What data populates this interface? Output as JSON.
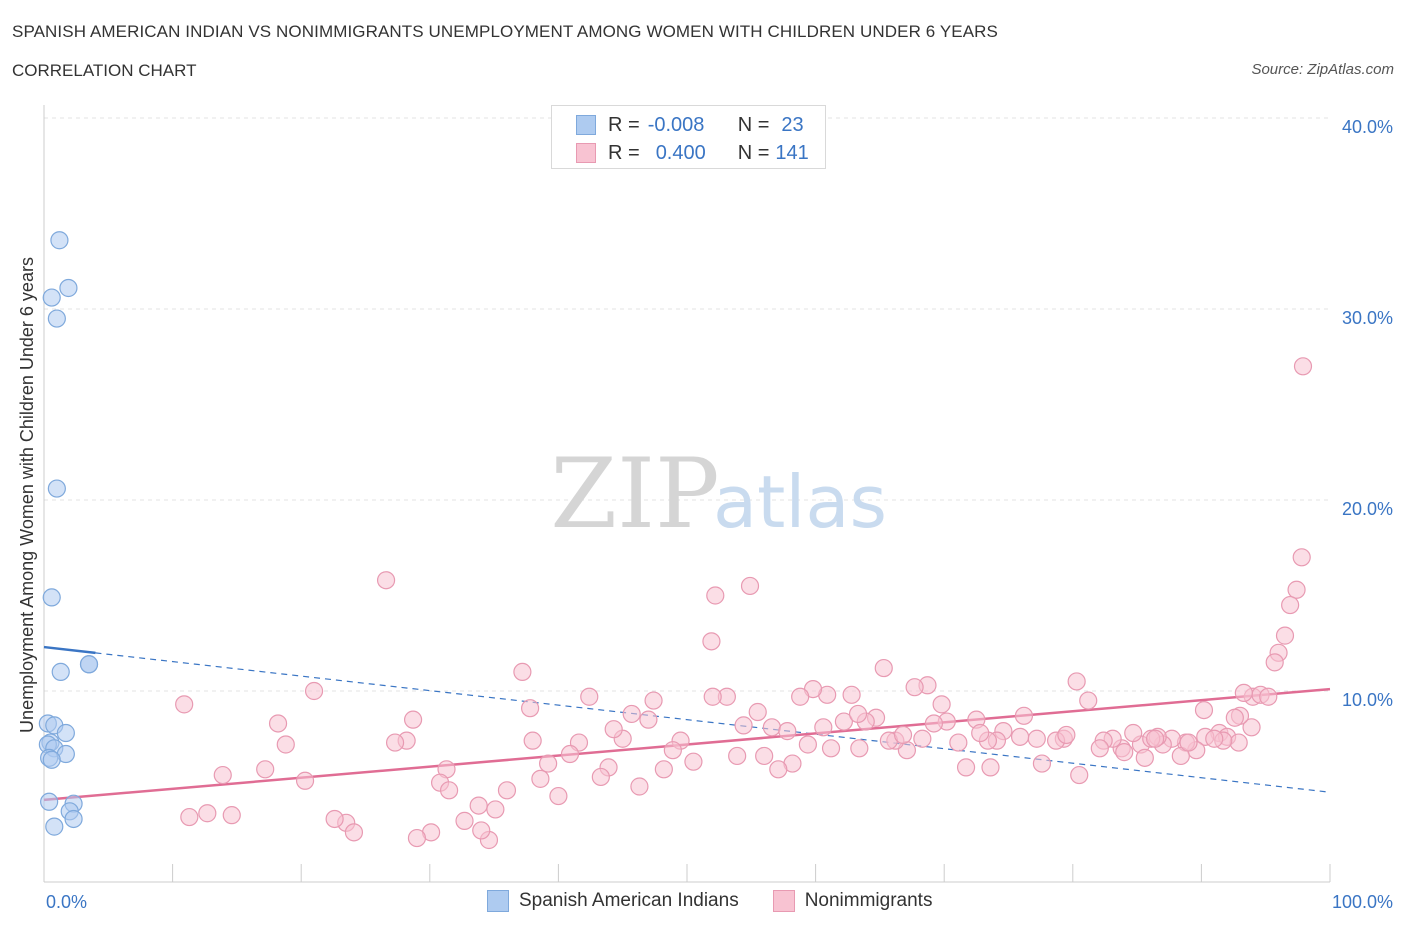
{
  "header": {
    "title": "SPANISH AMERICAN INDIAN VS NONIMMIGRANTS UNEMPLOYMENT AMONG WOMEN WITH CHILDREN UNDER 6 YEARS",
    "subtitle": "CORRELATION CHART",
    "source": "Source: ZipAtlas.com"
  },
  "legend": {
    "rows": [
      {
        "r_label": "R =",
        "r_value": "-0.008",
        "n_label": "N =",
        "n_value": "23",
        "color": "#aecbf0",
        "border": "#7fa9dc"
      },
      {
        "r_label": "R =",
        "r_value": "0.400",
        "n_label": "N =",
        "n_value": "141",
        "color": "#f8c3d2",
        "border": "#e89ab2"
      }
    ]
  },
  "bottom_legend": {
    "items": [
      {
        "label": "Spanish American Indians",
        "color": "#aecbf0",
        "border": "#7fa9dc"
      },
      {
        "label": "Nonimmigrants",
        "color": "#f8c3d2",
        "border": "#e89ab2"
      }
    ]
  },
  "watermark": {
    "zip": "ZIP",
    "atlas": "atlas"
  },
  "chart_data": {
    "type": "scatter",
    "title": "SPANISH AMERICAN INDIAN VS NONIMMIGRANTS UNEMPLOYMENT AMONG WOMEN WITH CHILDREN UNDER 6 YEARS",
    "ylabel": "Unemployment Among Women with Children Under 6 years",
    "xlabel": "",
    "xlim": [
      0,
      100
    ],
    "ylim": [
      0,
      40
    ],
    "x_tick_labels": [
      "0.0%",
      "100.0%"
    ],
    "y_ticks": [
      10,
      20,
      30,
      40
    ],
    "y_tick_labels": [
      "10.0%",
      "20.0%",
      "30.0%",
      "40.0%"
    ],
    "grid": true,
    "colors": {
      "blue": "#7fa9dc",
      "blue_fill": "#aecbf0",
      "pink": "#e89ab2",
      "pink_fill": "#f8c3d2",
      "blue_line": "#3a75c4",
      "pink_line": "#e06d94",
      "tick_text": "#3a75c4"
    },
    "series": [
      {
        "name": "Spanish American Indians",
        "trend": {
          "x0": 0,
          "y0": 12.3,
          "x1": 100,
          "y1": 4.7,
          "solid_until_x": 4
        },
        "points": [
          [
            1.2,
            33.6
          ],
          [
            1.9,
            31.1
          ],
          [
            0.6,
            30.6
          ],
          [
            1.0,
            29.5
          ],
          [
            1.0,
            20.6
          ],
          [
            0.6,
            14.9
          ],
          [
            3.5,
            11.4
          ],
          [
            3.5,
            11.4
          ],
          [
            1.3,
            11.0
          ],
          [
            0.3,
            8.3
          ],
          [
            0.8,
            8.2
          ],
          [
            1.7,
            7.8
          ],
          [
            0.5,
            7.3
          ],
          [
            0.3,
            7.2
          ],
          [
            0.8,
            7.0
          ],
          [
            1.7,
            6.7
          ],
          [
            0.4,
            6.5
          ],
          [
            0.6,
            6.4
          ],
          [
            0.4,
            4.2
          ],
          [
            2.3,
            4.1
          ],
          [
            2.0,
            3.7
          ],
          [
            2.3,
            3.3
          ],
          [
            0.8,
            2.9
          ]
        ]
      },
      {
        "name": "Nonimmigrants",
        "trend": {
          "x0": 0,
          "y0": 4.3,
          "x1": 100,
          "y1": 10.1
        },
        "points": [
          [
            97.9,
            27.0
          ],
          [
            97.8,
            17.0
          ],
          [
            97.4,
            15.3
          ],
          [
            96.9,
            14.5
          ],
          [
            96.5,
            12.9
          ],
          [
            96.0,
            12.0
          ],
          [
            95.7,
            11.5
          ],
          [
            94.0,
            9.7
          ],
          [
            94.6,
            9.8
          ],
          [
            95.2,
            9.7
          ],
          [
            93.3,
            9.9
          ],
          [
            93.9,
            8.1
          ],
          [
            93.0,
            8.7
          ],
          [
            92.6,
            8.6
          ],
          [
            90.2,
            9.0
          ],
          [
            91.4,
            7.8
          ],
          [
            92.0,
            7.6
          ],
          [
            92.9,
            7.3
          ],
          [
            91.7,
            7.4
          ],
          [
            90.3,
            7.6
          ],
          [
            89.6,
            6.9
          ],
          [
            88.8,
            7.3
          ],
          [
            88.4,
            6.6
          ],
          [
            87.7,
            7.5
          ],
          [
            87.0,
            7.2
          ],
          [
            86.6,
            7.6
          ],
          [
            85.3,
            7.2
          ],
          [
            84.7,
            7.8
          ],
          [
            86.1,
            7.5
          ],
          [
            83.8,
            7.0
          ],
          [
            85.6,
            6.5
          ],
          [
            83.1,
            7.5
          ],
          [
            82.4,
            7.4
          ],
          [
            80.3,
            10.5
          ],
          [
            81.2,
            9.5
          ],
          [
            79.3,
            7.5
          ],
          [
            80.5,
            5.6
          ],
          [
            78.7,
            7.4
          ],
          [
            77.6,
            6.2
          ],
          [
            77.2,
            7.5
          ],
          [
            76.2,
            8.7
          ],
          [
            75.9,
            7.6
          ],
          [
            74.6,
            7.9
          ],
          [
            74.1,
            7.4
          ],
          [
            73.4,
            7.4
          ],
          [
            72.5,
            8.5
          ],
          [
            72.8,
            7.8
          ],
          [
            71.7,
            6.0
          ],
          [
            71.1,
            7.3
          ],
          [
            70.2,
            8.4
          ],
          [
            69.2,
            8.3
          ],
          [
            68.7,
            10.3
          ],
          [
            68.3,
            7.5
          ],
          [
            67.7,
            10.2
          ],
          [
            67.1,
            6.9
          ],
          [
            66.2,
            7.4
          ],
          [
            65.7,
            7.4
          ],
          [
            65.3,
            11.2
          ],
          [
            64.7,
            8.6
          ],
          [
            63.9,
            8.4
          ],
          [
            63.4,
            7.0
          ],
          [
            62.8,
            9.8
          ],
          [
            62.2,
            8.4
          ],
          [
            60.9,
            9.8
          ],
          [
            60.6,
            8.1
          ],
          [
            59.8,
            10.1
          ],
          [
            59.4,
            7.2
          ],
          [
            58.8,
            9.7
          ],
          [
            58.2,
            6.2
          ],
          [
            57.1,
            5.9
          ],
          [
            56.6,
            8.1
          ],
          [
            56.0,
            6.6
          ],
          [
            55.5,
            8.9
          ],
          [
            54.9,
            15.5
          ],
          [
            54.4,
            8.2
          ],
          [
            53.9,
            6.6
          ],
          [
            53.1,
            9.7
          ],
          [
            52.2,
            15.0
          ],
          [
            52.0,
            9.7
          ],
          [
            51.9,
            12.6
          ],
          [
            50.5,
            6.3
          ],
          [
            49.5,
            7.4
          ],
          [
            48.9,
            6.9
          ],
          [
            47.4,
            9.5
          ],
          [
            47.0,
            8.5
          ],
          [
            46.3,
            5.0
          ],
          [
            45.7,
            8.8
          ],
          [
            45.0,
            7.5
          ],
          [
            43.9,
            6.0
          ],
          [
            43.3,
            5.5
          ],
          [
            42.4,
            9.7
          ],
          [
            41.6,
            7.3
          ],
          [
            40.9,
            6.7
          ],
          [
            40.0,
            4.5
          ],
          [
            39.2,
            6.2
          ],
          [
            38.6,
            5.4
          ],
          [
            38.0,
            7.4
          ],
          [
            37.2,
            11.0
          ],
          [
            36.0,
            4.8
          ],
          [
            35.1,
            3.8
          ],
          [
            34.6,
            2.2
          ],
          [
            34.0,
            2.7
          ],
          [
            33.8,
            4.0
          ],
          [
            32.7,
            3.2
          ],
          [
            31.3,
            5.9
          ],
          [
            30.8,
            5.2
          ],
          [
            30.1,
            2.6
          ],
          [
            29.0,
            2.3
          ],
          [
            28.7,
            8.5
          ],
          [
            28.2,
            7.4
          ],
          [
            26.6,
            15.8
          ],
          [
            23.5,
            3.1
          ],
          [
            22.6,
            3.3
          ],
          [
            21.0,
            10.0
          ],
          [
            24.1,
            2.6
          ],
          [
            18.8,
            7.2
          ],
          [
            17.2,
            5.9
          ],
          [
            14.6,
            3.5
          ],
          [
            13.9,
            5.6
          ],
          [
            12.7,
            3.6
          ],
          [
            11.3,
            3.4
          ],
          [
            10.9,
            9.3
          ],
          [
            18.2,
            8.3
          ],
          [
            27.3,
            7.3
          ],
          [
            20.3,
            5.3
          ],
          [
            31.5,
            4.8
          ],
          [
            37.8,
            9.1
          ],
          [
            44.3,
            8.0
          ],
          [
            48.2,
            5.9
          ],
          [
            61.2,
            7.0
          ],
          [
            73.6,
            6.0
          ],
          [
            79.5,
            7.7
          ],
          [
            82.1,
            7.0
          ],
          [
            84.0,
            6.8
          ],
          [
            86.4,
            7.5
          ],
          [
            89.0,
            7.3
          ],
          [
            91.0,
            7.5
          ],
          [
            66.8,
            7.7
          ],
          [
            69.8,
            9.3
          ],
          [
            57.8,
            7.9
          ],
          [
            63.3,
            8.8
          ]
        ]
      }
    ]
  }
}
